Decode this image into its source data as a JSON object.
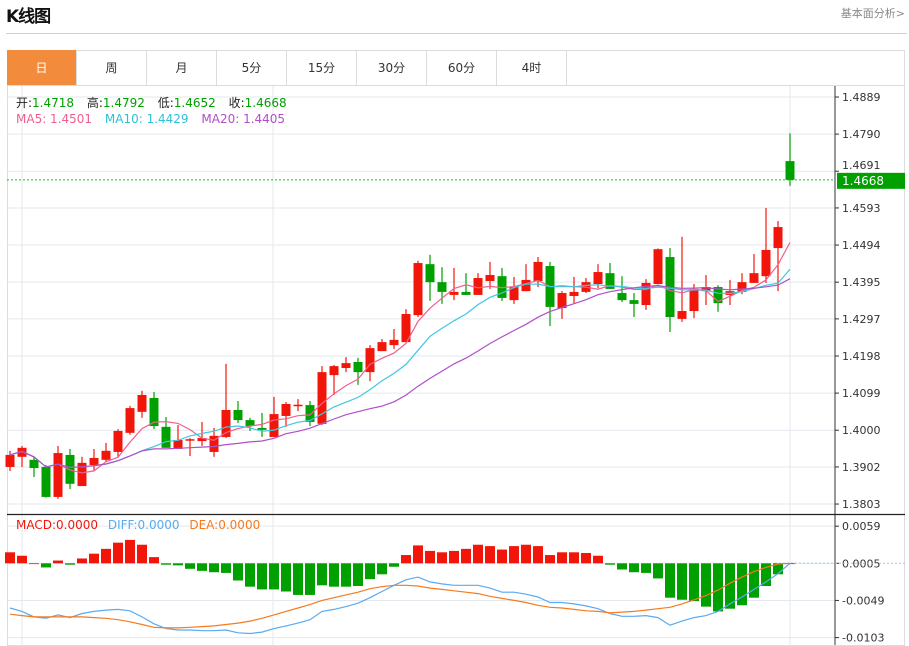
{
  "header": {
    "title": "K线图",
    "link": "基本面分析>"
  },
  "tabs": [
    {
      "label": "日",
      "active": true
    },
    {
      "label": "周"
    },
    {
      "label": "月"
    },
    {
      "label": "5分"
    },
    {
      "label": "15分"
    },
    {
      "label": "30分"
    },
    {
      "label": "60分"
    },
    {
      "label": "4时"
    }
  ],
  "ohlc_legend": {
    "open_label": "开:",
    "open": "1.4718",
    "high_label": "高:",
    "high": "1.4792",
    "low_label": "低:",
    "low": "1.4652",
    "close_label": "收:",
    "close": "1.4668"
  },
  "ma_legend": {
    "ma5": "MA5: 1.4501",
    "ma10": "MA10: 1.4429",
    "ma20": "MA20: 1.4405"
  },
  "macd_legend": {
    "macd": "MACD:0.0000",
    "diff": "DIFF:0.0000",
    "dea": "DEA:0.0000"
  },
  "colors": {
    "up": "#f2160a",
    "down": "#00a000",
    "ma5": "#f0608e",
    "ma10": "#40c8e0",
    "ma20": "#b050c8",
    "diff": "#5aaaf0",
    "dea": "#f57a1e",
    "accent": "#f28c3c"
  },
  "chart_data": {
    "type": "candlestick",
    "price_axis": {
      "ticks": [
        "1.4889",
        "1.4790",
        "1.4691",
        "1.4593",
        "1.4494",
        "1.4395",
        "1.4297",
        "1.4198",
        "1.4099",
        "1.4000",
        "1.3902",
        "1.3803"
      ],
      "range": [
        1.3803,
        1.4889
      ]
    },
    "current_price": "1.4668",
    "candles": [
      [
        1.3902,
        1.3945,
        1.3891,
        1.3934
      ],
      [
        1.3929,
        1.3958,
        1.3902,
        1.3953
      ],
      [
        1.3921,
        1.3929,
        1.3875,
        1.3899
      ],
      [
        1.3902,
        1.3907,
        1.382,
        1.3822
      ],
      [
        1.3822,
        1.3958,
        1.3817,
        1.3939
      ],
      [
        1.3934,
        1.395,
        1.3843,
        1.3857
      ],
      [
        1.3851,
        1.3929,
        1.3851,
        1.3913
      ],
      [
        1.3907,
        1.395,
        1.3893,
        1.3926
      ],
      [
        1.3921,
        1.3966,
        1.3916,
        1.3945
      ],
      [
        1.3942,
        1.4003,
        1.3929,
        1.3998
      ],
      [
        1.3993,
        1.4065,
        1.3988,
        1.4059
      ],
      [
        1.4049,
        1.4105,
        1.4033,
        1.4094
      ],
      [
        1.4086,
        1.4102,
        1.4003,
        1.4011
      ],
      [
        1.4009,
        1.4035,
        1.3953,
        1.3953
      ],
      [
        1.395,
        1.4014,
        1.395,
        1.3974
      ],
      [
        1.3974,
        1.3979,
        1.3931,
        1.3976
      ],
      [
        1.3971,
        1.4022,
        1.3958,
        1.3979
      ],
      [
        1.3942,
        1.4006,
        1.3929,
        1.3985
      ],
      [
        1.3982,
        1.4177,
        1.3979,
        1.4054
      ],
      [
        1.4054,
        1.4078,
        1.4019,
        1.4027
      ],
      [
        1.4027,
        1.4033,
        1.3998,
        1.4011
      ],
      [
        1.4006,
        1.4046,
        1.3982,
        1.4001
      ],
      [
        1.3982,
        1.4089,
        1.3982,
        1.4043
      ],
      [
        1.4038,
        1.4075,
        1.4009,
        1.407
      ],
      [
        1.4067,
        1.4083,
        1.4051,
        1.4068
      ],
      [
        1.4067,
        1.4078,
        1.4011,
        1.4022
      ],
      [
        1.4017,
        1.4171,
        1.4014,
        1.4155
      ],
      [
        1.4147,
        1.4174,
        1.4094,
        1.4171
      ],
      [
        1.4166,
        1.4195,
        1.4155,
        1.4179
      ],
      [
        1.4182,
        1.4193,
        1.4121,
        1.4155
      ],
      [
        1.4155,
        1.4227,
        1.4131,
        1.4219
      ],
      [
        1.4211,
        1.4243,
        1.4211,
        1.4235
      ],
      [
        1.4227,
        1.427,
        1.4217,
        1.4241
      ],
      [
        1.4235,
        1.4323,
        1.4235,
        1.431
      ],
      [
        1.4307,
        1.4452,
        1.4302,
        1.4446
      ],
      [
        1.4443,
        1.4468,
        1.4345,
        1.4395
      ],
      [
        1.4395,
        1.4435,
        1.4337,
        1.4369
      ],
      [
        1.4361,
        1.4433,
        1.4347,
        1.4369
      ],
      [
        1.4369,
        1.4419,
        1.4361,
        1.4361
      ],
      [
        1.4361,
        1.4419,
        1.4361,
        1.4406
      ],
      [
        1.4398,
        1.4449,
        1.4377,
        1.4414
      ],
      [
        1.4411,
        1.4433,
        1.4345,
        1.4353
      ],
      [
        1.4347,
        1.4409,
        1.4337,
        1.4382
      ],
      [
        1.4371,
        1.4443,
        1.4371,
        1.4401
      ],
      [
        1.4398,
        1.4462,
        1.4382,
        1.4449
      ],
      [
        1.4438,
        1.4449,
        1.4278,
        1.4329
      ],
      [
        1.4326,
        1.4371,
        1.4297,
        1.4366
      ],
      [
        1.4358,
        1.4409,
        1.4339,
        1.4369
      ],
      [
        1.4369,
        1.4406,
        1.4366,
        1.4395
      ],
      [
        1.439,
        1.4443,
        1.4379,
        1.4422
      ],
      [
        1.4419,
        1.4446,
        1.4377,
        1.4377
      ],
      [
        1.4366,
        1.4411,
        1.4342,
        1.4347
      ],
      [
        1.4347,
        1.4366,
        1.4302,
        1.4337
      ],
      [
        1.4334,
        1.4403,
        1.4321,
        1.4393
      ],
      [
        1.439,
        1.4485,
        1.439,
        1.4483
      ],
      [
        1.4462,
        1.4486,
        1.4262,
        1.4302
      ],
      [
        1.4297,
        1.4516,
        1.4289,
        1.4318
      ],
      [
        1.4318,
        1.439,
        1.4299,
        1.4377
      ],
      [
        1.4371,
        1.4414,
        1.4334,
        1.4382
      ],
      [
        1.4382,
        1.4387,
        1.4316,
        1.4339
      ],
      [
        1.4361,
        1.4401,
        1.4334,
        1.4371
      ],
      [
        1.4369,
        1.4419,
        1.4363,
        1.4395
      ],
      [
        1.4393,
        1.447,
        1.4393,
        1.4419
      ],
      [
        1.4411,
        1.4593,
        1.4393,
        1.4481
      ],
      [
        1.4486,
        1.4558,
        1.4371,
        1.4542
      ],
      [
        1.4718,
        1.4792,
        1.4652,
        1.4668
      ]
    ],
    "macd_axis": {
      "ticks": [
        "0.0059",
        "0.0005",
        "-0.0049",
        "-0.0103"
      ]
    },
    "macd": [
      0.0016,
      0.0011,
      0.0,
      -0.0006,
      0.0004,
      -0.0002,
      0.0007,
      0.0014,
      0.0021,
      0.003,
      0.0034,
      0.0027,
      0.0009,
      -0.0002,
      -0.0003,
      -0.0008,
      -0.0011,
      -0.0013,
      -0.0014,
      -0.0025,
      -0.0034,
      -0.0038,
      -0.0038,
      -0.0041,
      -0.0046,
      -0.0046,
      -0.0032,
      -0.0034,
      -0.0034,
      -0.0033,
      -0.0023,
      -0.0016,
      -0.0005,
      0.0012,
      0.0026,
      0.0018,
      0.0016,
      0.0018,
      0.0021,
      0.0027,
      0.0025,
      0.002,
      0.0025,
      0.0027,
      0.0025,
      0.0012,
      0.0016,
      0.0016,
      0.0015,
      0.0011,
      -0.0002,
      -0.0009,
      -0.0013,
      -0.0014,
      -0.0022,
      -0.005,
      -0.0053,
      -0.0055,
      -0.0063,
      -0.007,
      -0.0066,
      -0.0061,
      -0.005,
      -0.0033,
      -0.0016,
      0.0
    ],
    "diff": [
      -0.0065,
      -0.007,
      -0.0078,
      -0.008,
      -0.0075,
      -0.0079,
      -0.0073,
      -0.007,
      -0.0068,
      -0.0067,
      -0.0069,
      -0.0078,
      -0.0088,
      -0.0095,
      -0.0097,
      -0.0097,
      -0.0098,
      -0.0098,
      -0.0097,
      -0.0101,
      -0.0102,
      -0.01,
      -0.0095,
      -0.0091,
      -0.0087,
      -0.0082,
      -0.007,
      -0.0067,
      -0.0063,
      -0.0058,
      -0.005,
      -0.0041,
      -0.0032,
      -0.0024,
      -0.002,
      -0.0027,
      -0.003,
      -0.0032,
      -0.0032,
      -0.0032,
      -0.0036,
      -0.0042,
      -0.0042,
      -0.0045,
      -0.0049,
      -0.0057,
      -0.0057,
      -0.0059,
      -0.0062,
      -0.0066,
      -0.0073,
      -0.0077,
      -0.0077,
      -0.0076,
      -0.0079,
      -0.009,
      -0.0084,
      -0.0079,
      -0.0076,
      -0.007,
      -0.0059,
      -0.0049,
      -0.0038,
      -0.0027,
      -0.0015,
      0.0
    ],
    "dea": [
      -0.0074,
      -0.0076,
      -0.0078,
      -0.0078,
      -0.0078,
      -0.0078,
      -0.0078,
      -0.0079,
      -0.008,
      -0.0082,
      -0.0085,
      -0.0089,
      -0.0093,
      -0.0094,
      -0.0094,
      -0.0093,
      -0.0092,
      -0.0091,
      -0.0089,
      -0.0087,
      -0.0084,
      -0.008,
      -0.0075,
      -0.007,
      -0.0065,
      -0.006,
      -0.0054,
      -0.005,
      -0.0046,
      -0.0042,
      -0.0037,
      -0.0034,
      -0.0032,
      -0.0032,
      -0.0033,
      -0.0036,
      -0.0038,
      -0.004,
      -0.0042,
      -0.0044,
      -0.0048,
      -0.0051,
      -0.0054,
      -0.0057,
      -0.0061,
      -0.0064,
      -0.0065,
      -0.0067,
      -0.0069,
      -0.007,
      -0.0072,
      -0.0071,
      -0.007,
      -0.0068,
      -0.0066,
      -0.0064,
      -0.0059,
      -0.0053,
      -0.0047,
      -0.0039,
      -0.0029,
      -0.002,
      -0.0012,
      -0.0006,
      -0.0001,
      0.0
    ]
  }
}
